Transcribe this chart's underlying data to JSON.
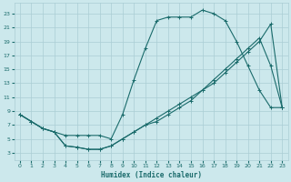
{
  "xlabel": "Humidex (Indice chaleur)",
  "bg_color": "#cce8ec",
  "grid_color": "#aacdd4",
  "line_color": "#1a6b6b",
  "xlim": [
    -0.5,
    23.5
  ],
  "ylim": [
    2,
    24.5
  ],
  "yticks": [
    3,
    5,
    7,
    9,
    11,
    13,
    15,
    17,
    19,
    21,
    23
  ],
  "xticks": [
    0,
    1,
    2,
    3,
    4,
    5,
    6,
    7,
    8,
    9,
    10,
    11,
    12,
    13,
    14,
    15,
    16,
    17,
    18,
    19,
    20,
    21,
    22,
    23
  ],
  "line1_x": [
    0,
    1,
    2,
    3,
    4,
    5,
    6,
    7,
    8,
    9,
    10,
    11,
    12,
    13,
    14,
    15,
    16,
    17,
    18,
    19,
    20,
    21,
    22,
    23
  ],
  "line1_y": [
    8.5,
    7.5,
    6.5,
    6.0,
    5.5,
    5.5,
    5.5,
    5.5,
    5.0,
    8.5,
    13.5,
    18.0,
    22.0,
    22.5,
    22.5,
    22.5,
    23.5,
    23.0,
    22.0,
    19.0,
    15.5,
    12.0,
    9.5,
    9.5
  ],
  "line2_x": [
    0,
    1,
    2,
    3,
    4,
    5,
    6,
    7,
    8,
    9,
    10,
    11,
    12,
    13,
    14,
    15,
    16,
    17,
    18,
    19,
    20,
    21,
    22,
    23
  ],
  "line2_y": [
    8.5,
    7.5,
    6.5,
    6.0,
    4.0,
    3.8,
    3.5,
    3.5,
    4.0,
    5.0,
    6.0,
    7.0,
    8.0,
    9.0,
    10.0,
    11.0,
    12.0,
    13.0,
    14.5,
    16.0,
    17.5,
    19.0,
    21.5,
    9.5
  ],
  "line3_x": [
    0,
    1,
    2,
    3,
    4,
    5,
    6,
    7,
    8,
    9,
    10,
    11,
    12,
    13,
    14,
    15,
    16,
    17,
    18,
    19,
    20,
    21,
    22,
    23
  ],
  "line3_y": [
    8.5,
    7.5,
    6.5,
    6.0,
    4.0,
    3.8,
    3.5,
    3.5,
    4.0,
    5.0,
    6.0,
    7.0,
    7.5,
    8.5,
    9.5,
    10.5,
    12.0,
    13.5,
    15.0,
    16.5,
    18.0,
    19.5,
    15.5,
    9.5
  ]
}
